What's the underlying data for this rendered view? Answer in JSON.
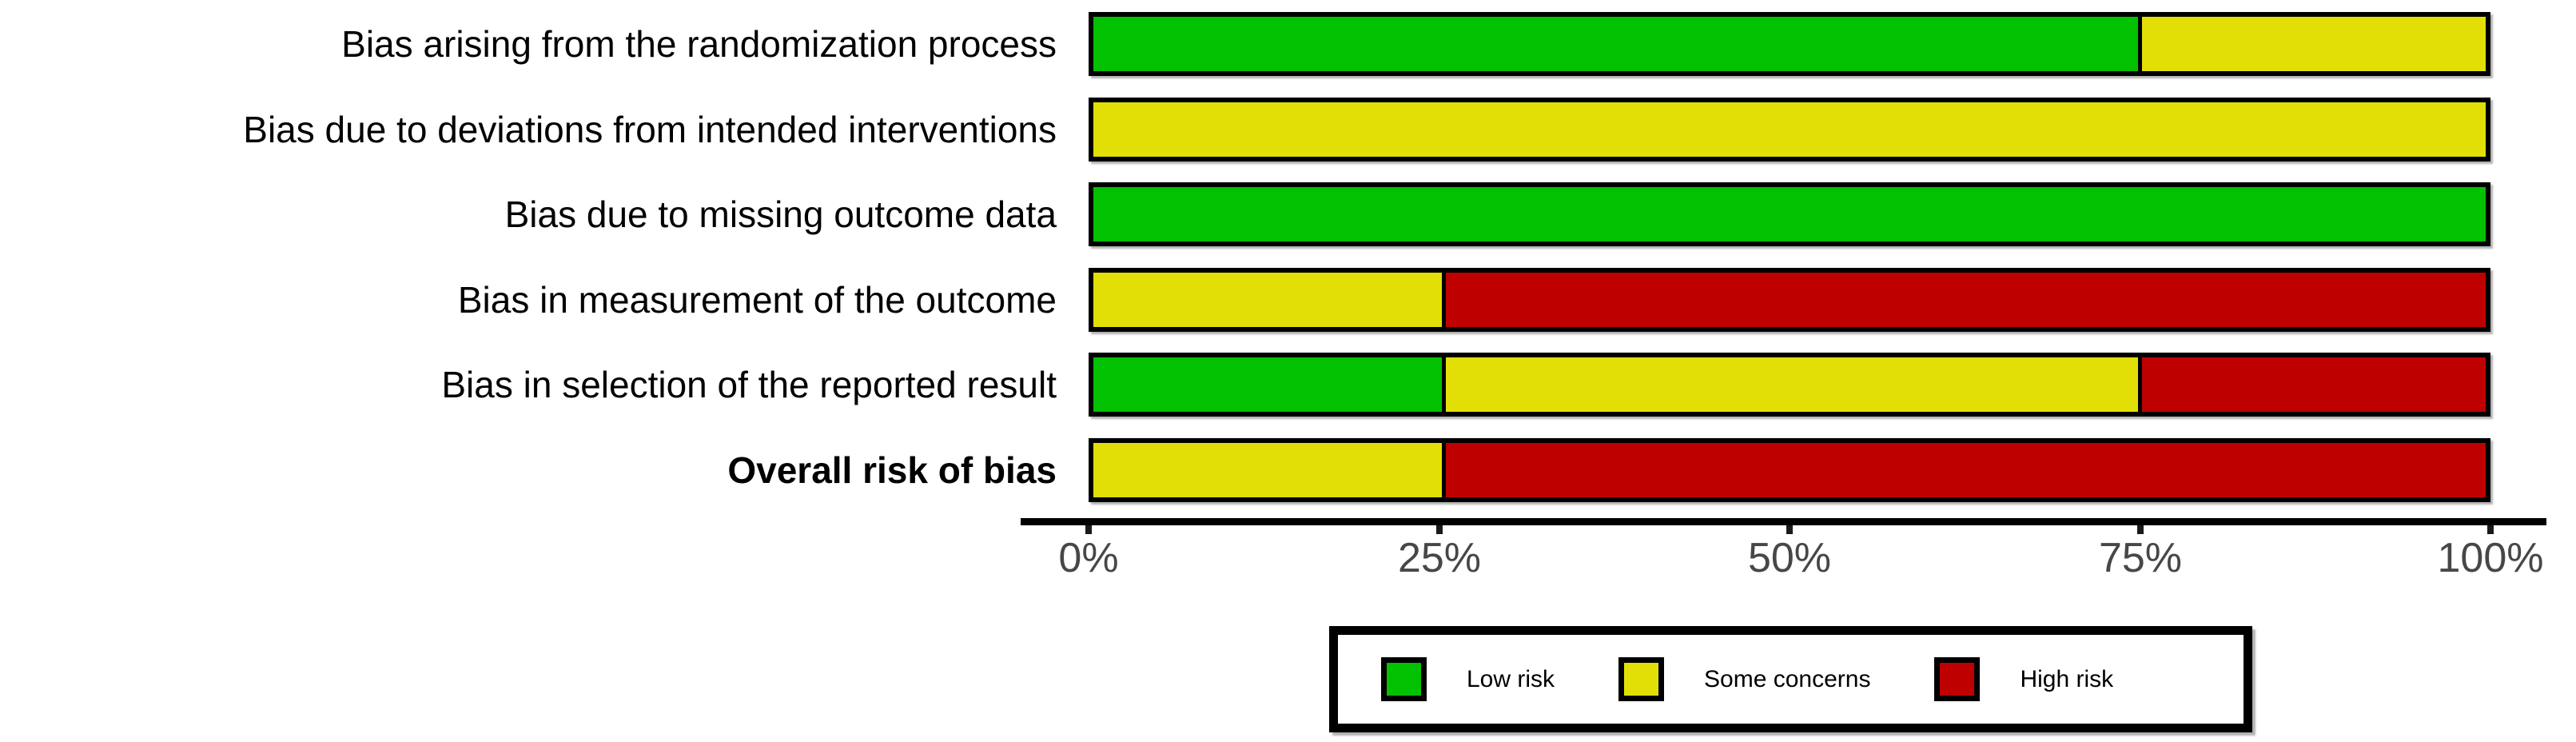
{
  "chart_data": {
    "type": "bar",
    "subtype": "horizontal-stacked-weighted-rob-summary",
    "title": "",
    "xlabel": "",
    "ylabel": "",
    "xlim": [
      0,
      100
    ],
    "grid": false,
    "legend_position": "bottom-center",
    "colors": {
      "low": "#02C100",
      "concerns": "#E2DF07",
      "high": "#BF0000",
      "bar_border": "#000000",
      "axis_line": "#000000",
      "tick_text": "#474747"
    },
    "categories": [
      "Bias arising from the randomization process",
      "Bias due to deviations from intended interventions",
      "Bias due to missing outcome data",
      "Bias in measurement of the outcome",
      "Bias in selection of the reported result",
      "Overall risk of bias"
    ],
    "series": [
      {
        "name": "Low risk",
        "color_key": "low",
        "values": [
          75,
          0,
          100,
          0,
          25,
          0
        ]
      },
      {
        "name": "Some concerns",
        "color_key": "concerns",
        "values": [
          25,
          100,
          0,
          25,
          50,
          25
        ]
      },
      {
        "name": "High risk",
        "color_key": "high",
        "values": [
          0,
          0,
          0,
          75,
          25,
          75
        ]
      }
    ],
    "rows": [
      {
        "label": "Bias arising from the randomization process",
        "bold": false,
        "segments": [
          {
            "risk": "low",
            "pct": 75
          },
          {
            "risk": "concerns",
            "pct": 25
          }
        ]
      },
      {
        "label": "Bias due to deviations from intended interventions",
        "bold": false,
        "segments": [
          {
            "risk": "concerns",
            "pct": 100
          }
        ]
      },
      {
        "label": "Bias due to missing outcome data",
        "bold": false,
        "segments": [
          {
            "risk": "low",
            "pct": 100
          }
        ]
      },
      {
        "label": "Bias in measurement of the outcome",
        "bold": false,
        "segments": [
          {
            "risk": "concerns",
            "pct": 25
          },
          {
            "risk": "high",
            "pct": 75
          }
        ]
      },
      {
        "label": "Bias in selection of the reported result",
        "bold": false,
        "segments": [
          {
            "risk": "low",
            "pct": 25
          },
          {
            "risk": "concerns",
            "pct": 50
          },
          {
            "risk": "high",
            "pct": 25
          }
        ]
      },
      {
        "label": "Overall risk of bias",
        "bold": true,
        "segments": [
          {
            "risk": "concerns",
            "pct": 25
          },
          {
            "risk": "high",
            "pct": 75
          }
        ]
      }
    ],
    "x_ticks": [
      {
        "label": "0%",
        "value": 0
      },
      {
        "label": "25%",
        "value": 25
      },
      {
        "label": "50%",
        "value": 50
      },
      {
        "label": "75%",
        "value": 75
      },
      {
        "label": "100%",
        "value": 100
      }
    ],
    "legend": {
      "items": [
        {
          "label": "Low risk",
          "color_key": "low"
        },
        {
          "label": "Some concerns",
          "color_key": "concerns"
        },
        {
          "label": "High risk",
          "color_key": "high"
        }
      ]
    }
  }
}
